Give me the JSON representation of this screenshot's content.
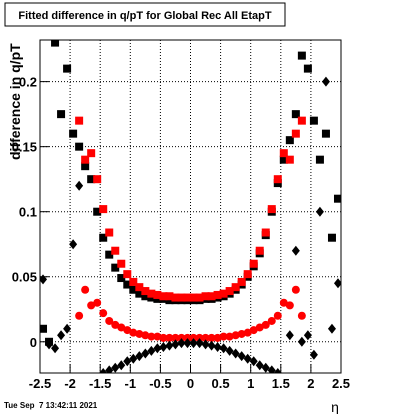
{
  "chart_data": {
    "type": "scatter",
    "title": "Fitted difference in q/pT for Global Rec All EtapT",
    "ylabel": "difference in q/pT",
    "xlabel": "η",
    "footer": "Tue Sep  7 13:42:11 2021",
    "grid": true,
    "xlim": [
      -2.5,
      2.5
    ],
    "ylim": [
      -0.024,
      0.232
    ],
    "xticks": [
      -2.5,
      -2,
      -1.5,
      -1,
      -0.5,
      0,
      0.5,
      1,
      1.5,
      2,
      2.5
    ],
    "yticks": [
      0,
      0.05,
      0.1,
      0.15,
      0.2
    ],
    "x": [
      -2.45,
      -2.35,
      -2.25,
      -2.15,
      -2.05,
      -1.95,
      -1.85,
      -1.75,
      -1.65,
      -1.55,
      -1.45,
      -1.35,
      -1.25,
      -1.15,
      -1.05,
      -0.95,
      -0.85,
      -0.75,
      -0.65,
      -0.55,
      -0.45,
      -0.35,
      -0.25,
      -0.15,
      -0.05,
      0.05,
      0.15,
      0.25,
      0.35,
      0.45,
      0.55,
      0.65,
      0.75,
      0.85,
      0.95,
      1.05,
      1.15,
      1.25,
      1.35,
      1.45,
      1.55,
      1.65,
      1.75,
      1.85,
      1.95,
      2.05,
      2.15,
      2.25,
      2.35,
      2.45
    ],
    "series": [
      {
        "marker": "square",
        "color": "#000000",
        "values": [
          0.01,
          0.0,
          0.23,
          0.175,
          0.21,
          0.16,
          0.15,
          0.135,
          0.125,
          0.1,
          0.08,
          0.067,
          0.057,
          0.049,
          0.044,
          0.04,
          0.037,
          0.035,
          0.034,
          0.033,
          0.033,
          0.032,
          0.032,
          0.032,
          0.032,
          0.032,
          0.032,
          0.033,
          0.033,
          0.034,
          0.035,
          0.037,
          0.04,
          0.044,
          0.05,
          0.058,
          0.068,
          0.082,
          0.1,
          0.122,
          0.14,
          0.155,
          0.175,
          0.22,
          0.21,
          0.17,
          0.14,
          0.16,
          0.08,
          0.11
        ]
      },
      {
        "marker": "square",
        "color": "#ff0000",
        "values": [
          null,
          null,
          null,
          null,
          null,
          null,
          0.17,
          0.14,
          0.145,
          0.125,
          0.102,
          0.084,
          0.07,
          0.06,
          0.052,
          0.046,
          0.042,
          0.039,
          0.037,
          0.036,
          0.035,
          0.035,
          0.034,
          0.034,
          0.034,
          0.034,
          0.034,
          0.035,
          0.035,
          0.036,
          0.037,
          0.039,
          0.042,
          0.046,
          0.052,
          0.06,
          0.07,
          0.084,
          0.102,
          0.125,
          0.145,
          0.14,
          0.16,
          0.17,
          null,
          null,
          null,
          null,
          null,
          null
        ]
      },
      {
        "marker": "circle",
        "color": "#ff0000",
        "values": [
          null,
          null,
          null,
          null,
          null,
          null,
          0.02,
          0.04,
          0.028,
          0.03,
          0.022,
          0.016,
          0.013,
          0.011,
          0.009,
          0.007,
          0.006,
          0.005,
          0.004,
          0.004,
          0.003,
          0.003,
          0.003,
          0.003,
          0.003,
          0.003,
          0.003,
          0.003,
          0.003,
          0.003,
          0.004,
          0.004,
          0.005,
          0.006,
          0.007,
          0.009,
          0.011,
          0.013,
          0.016,
          0.02,
          0.03,
          0.028,
          0.04,
          0.02,
          null,
          null,
          null,
          null,
          null,
          null
        ]
      },
      {
        "marker": "diamond",
        "color": "#000000",
        "values": [
          0.048,
          -0.002,
          -0.005,
          0.005,
          0.01,
          0.075,
          0.12,
          null,
          null,
          null,
          -0.024,
          -0.022,
          -0.02,
          -0.018,
          -0.015,
          -0.013,
          -0.011,
          -0.009,
          -0.007,
          -0.005,
          -0.004,
          -0.003,
          -0.002,
          -0.001,
          -0.001,
          -0.001,
          -0.001,
          -0.002,
          -0.003,
          -0.004,
          -0.005,
          -0.007,
          -0.009,
          -0.011,
          -0.013,
          -0.015,
          -0.018,
          -0.02,
          -0.022,
          -0.024,
          null,
          0.005,
          0.07,
          0.0,
          0.005,
          -0.01,
          0.1,
          0.2,
          0.01,
          0.045
        ]
      }
    ]
  }
}
